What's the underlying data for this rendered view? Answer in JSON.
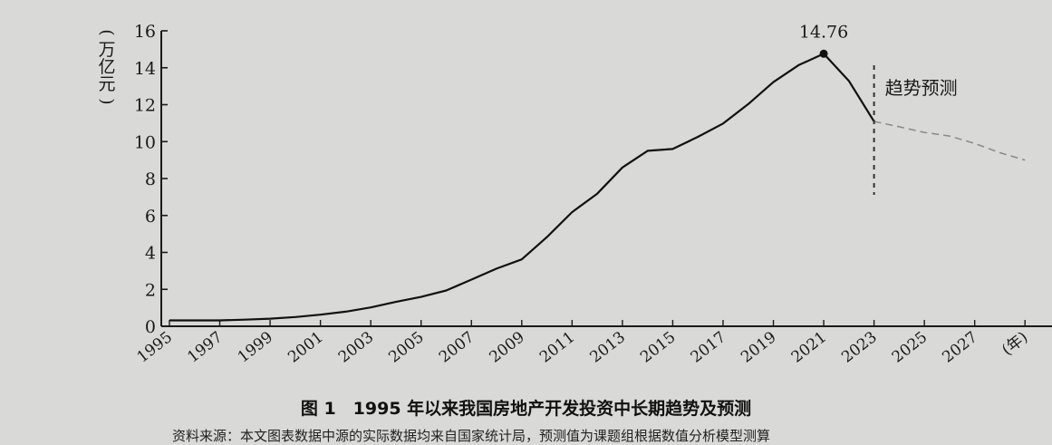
{
  "chart_data": {
    "type": "line",
    "title": "图 1　1995 年以来我国房地产开发投资中长期趋势及预测",
    "ylabel_chars": [
      "(",
      "万",
      "亿",
      "元",
      ")"
    ],
    "ylim": [
      0,
      16
    ],
    "yticks": [
      0,
      2,
      4,
      6,
      8,
      10,
      12,
      14,
      16
    ],
    "xlim": [
      1995,
      2030
    ],
    "xtick_labels": [
      "1995",
      "1997",
      "1999",
      "2001",
      "2003",
      "2005",
      "2007",
      "2009",
      "2011",
      "2013",
      "2015",
      "2017",
      "2019",
      "2021",
      "2023",
      "2025",
      "2027",
      "(年)"
    ],
    "xtick_positions": [
      1995,
      1997,
      1999,
      2001,
      2003,
      2005,
      2007,
      2009,
      2011,
      2013,
      2015,
      2017,
      2019,
      2021,
      2023,
      2025,
      2027,
      2029
    ],
    "series": [
      {
        "style": "solid",
        "x": [
          1995,
          1996,
          1997,
          1998,
          1999,
          2000,
          2001,
          2002,
          2003,
          2004,
          2005,
          2006,
          2007,
          2008,
          2009,
          2010,
          2011,
          2012,
          2013,
          2014,
          2015,
          2016,
          2017,
          2018,
          2019,
          2020,
          2021,
          2022,
          2023
        ],
        "y": [
          0.32,
          0.32,
          0.32,
          0.36,
          0.41,
          0.5,
          0.63,
          0.79,
          1.02,
          1.32,
          1.59,
          1.94,
          2.53,
          3.12,
          3.62,
          4.83,
          6.18,
          7.18,
          8.6,
          9.5,
          9.6,
          10.26,
          10.98,
          12.03,
          13.22,
          14.14,
          14.76,
          13.29,
          11.09
        ]
      },
      {
        "style": "dashed",
        "x": [
          2023,
          2024,
          2025,
          2026,
          2027,
          2028,
          2029
        ],
        "y": [
          11.09,
          10.8,
          10.5,
          10.3,
          9.9,
          9.4,
          9.0
        ]
      }
    ],
    "annotations": {
      "peak_label": "14.76",
      "peak_x": 2021,
      "peak_y": 14.76,
      "forecast_label": "趋势预测",
      "forecast_divider_x": 2023
    }
  },
  "source_note": "资料来源：本文图表数据中源的实际数据均来自国家统计局，预测值为课题组根据数值分析模型测算"
}
